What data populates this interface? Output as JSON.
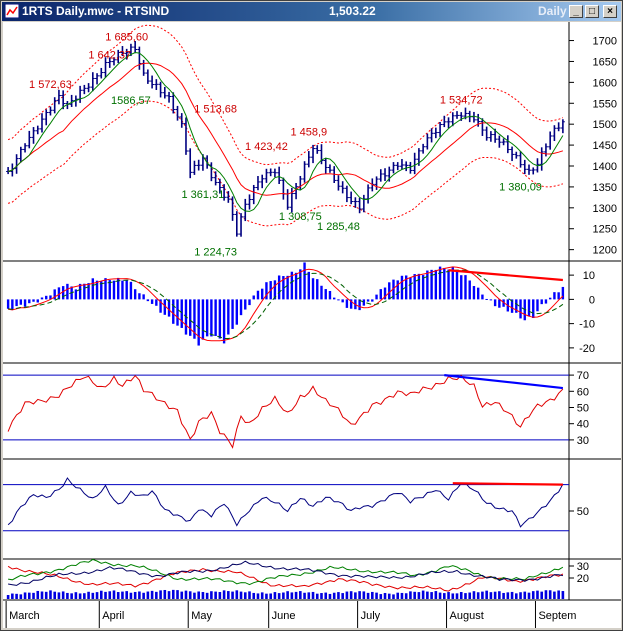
{
  "window": {
    "title": "1RTS Daily.mwc - RTSIND",
    "last_value": "1,503.22",
    "period": "Daily",
    "buttons": {
      "minimize": "_",
      "maximize": "□",
      "close": "×"
    }
  },
  "colors": {
    "price_bar": "#000080",
    "ma_red": "#ff0000",
    "ma_green": "#008000",
    "envelope": "#ff0000",
    "macd_hist": "#0000ff",
    "divergence_red": "#ff0000",
    "divergence_blue": "#0000ff",
    "grid_blue": "#0000c0"
  },
  "chart_data": [
    {
      "type": "bar",
      "panel": "price",
      "y_ticks": [
        "1700",
        "1650",
        "1600",
        "1550",
        "1500",
        "1450",
        "1400",
        "1350",
        "1300",
        "1250",
        "1200"
      ],
      "ylim": [
        1180,
        1730
      ],
      "x_labels": [
        "March",
        "April",
        "May",
        "June",
        "July",
        "August",
        "Septem"
      ],
      "x_label_days": [
        0,
        22,
        43,
        62,
        83,
        104,
        125
      ],
      "days": 132,
      "close_keypoints": [
        [
          0,
          1380
        ],
        [
          4,
          1460
        ],
        [
          8,
          1510
        ],
        [
          12,
          1560
        ],
        [
          14,
          1540
        ],
        [
          17,
          1580
        ],
        [
          21,
          1620
        ],
        [
          23,
          1642
        ],
        [
          26,
          1660
        ],
        [
          30,
          1680
        ],
        [
          32,
          1620
        ],
        [
          35,
          1595
        ],
        [
          38,
          1560
        ],
        [
          41,
          1490
        ],
        [
          43,
          1380
        ],
        [
          46,
          1420
        ],
        [
          49,
          1365
        ],
        [
          52,
          1320
        ],
        [
          54,
          1240
        ],
        [
          56,
          1300
        ],
        [
          58,
          1340
        ],
        [
          60,
          1375
        ],
        [
          63,
          1395
        ],
        [
          66,
          1310
        ],
        [
          69,
          1370
        ],
        [
          72,
          1440
        ],
        [
          75,
          1400
        ],
        [
          78,
          1360
        ],
        [
          81,
          1320
        ],
        [
          83,
          1300
        ],
        [
          86,
          1355
        ],
        [
          89,
          1380
        ],
        [
          92,
          1410
        ],
        [
          95,
          1400
        ],
        [
          98,
          1450
        ],
        [
          101,
          1480
        ],
        [
          104,
          1510
        ],
        [
          107,
          1530
        ],
        [
          110,
          1520
        ],
        [
          113,
          1470
        ],
        [
          116,
          1455
        ],
        [
          119,
          1430
        ],
        [
          121,
          1410
        ],
        [
          123,
          1390
        ],
        [
          125,
          1410
        ],
        [
          128,
          1470
        ],
        [
          131,
          1500
        ]
      ],
      "labels_red": [
        {
          "day": 10,
          "value": 1572.63,
          "text": "1 572,63"
        },
        {
          "day": 24,
          "value": 1642.37,
          "text": "1 642,37"
        },
        {
          "day": 28,
          "value": 1685.6,
          "text": "1 685,60"
        },
        {
          "day": 49,
          "value": 1513.68,
          "text": "1 513,68"
        },
        {
          "day": 61,
          "value": 1423.42,
          "text": "1 423,42"
        },
        {
          "day": 71,
          "value": 1458.9,
          "text": "1 458,9"
        },
        {
          "day": 107,
          "value": 1534.72,
          "text": "1 534,72"
        }
      ],
      "labels_green": [
        {
          "day": 29,
          "value": 1586.57,
          "text": "1586,57"
        },
        {
          "day": 46,
          "value": 1361.31,
          "text": "1 361,31"
        },
        {
          "day": 49,
          "value": 1224.73,
          "text": "1 224,73"
        },
        {
          "day": 69,
          "value": 1308.75,
          "text": "1 308,75"
        },
        {
          "day": 78,
          "value": 1285.48,
          "text": "1 285,48"
        },
        {
          "day": 121,
          "value": 1380.09,
          "text": "1 380,09"
        }
      ]
    },
    {
      "type": "bar",
      "panel": "macd",
      "y_ticks": [
        "10",
        "0",
        "-10",
        "-20"
      ],
      "ylim": [
        -25,
        15
      ],
      "hist_keypoints": [
        [
          0,
          -5
        ],
        [
          5,
          -2
        ],
        [
          9,
          2
        ],
        [
          13,
          6
        ],
        [
          16,
          4
        ],
        [
          20,
          8
        ],
        [
          24,
          9
        ],
        [
          28,
          8
        ],
        [
          31,
          2
        ],
        [
          34,
          -2
        ],
        [
          38,
          -7
        ],
        [
          41,
          -12
        ],
        [
          45,
          -19
        ],
        [
          48,
          -15
        ],
        [
          51,
          -17
        ],
        [
          54,
          -9
        ],
        [
          56,
          -4
        ],
        [
          59,
          3
        ],
        [
          62,
          7
        ],
        [
          65,
          10
        ],
        [
          68,
          12
        ],
        [
          70,
          15
        ],
        [
          72,
          9
        ],
        [
          76,
          2
        ],
        [
          79,
          -2
        ],
        [
          82,
          -4
        ],
        [
          84,
          -2
        ],
        [
          86,
          0
        ],
        [
          89,
          5
        ],
        [
          93,
          9
        ],
        [
          97,
          11
        ],
        [
          101,
          13
        ],
        [
          105,
          12
        ],
        [
          109,
          8
        ],
        [
          112,
          3
        ],
        [
          115,
          -2
        ],
        [
          119,
          -6
        ],
        [
          122,
          -9
        ],
        [
          124,
          -7
        ],
        [
          126,
          -2
        ],
        [
          129,
          3
        ],
        [
          131,
          5
        ]
      ],
      "divergence": {
        "day_start": 104,
        "value_start": 12,
        "day_end": 131,
        "value_end": 8
      }
    },
    {
      "type": "line",
      "panel": "rsi",
      "y_ticks": [
        "70",
        "60",
        "50",
        "40",
        "30"
      ],
      "ylim": [
        25,
        75
      ],
      "band_lines": [
        70,
        30
      ],
      "line_keypoints": [
        [
          0,
          37
        ],
        [
          4,
          51
        ],
        [
          8,
          54
        ],
        [
          12,
          59
        ],
        [
          14,
          63
        ],
        [
          18,
          68
        ],
        [
          22,
          61
        ],
        [
          25,
          69
        ],
        [
          27,
          65
        ],
        [
          30,
          70
        ],
        [
          32,
          60
        ],
        [
          36,
          53
        ],
        [
          40,
          49
        ],
        [
          43,
          31
        ],
        [
          45,
          41
        ],
        [
          48,
          45
        ],
        [
          50,
          34
        ],
        [
          53,
          27
        ],
        [
          55,
          46
        ],
        [
          57,
          41
        ],
        [
          60,
          49
        ],
        [
          63,
          54
        ],
        [
          66,
          45
        ],
        [
          69,
          57
        ],
        [
          72,
          63
        ],
        [
          75,
          54
        ],
        [
          78,
          47
        ],
        [
          81,
          38
        ],
        [
          83,
          44
        ],
        [
          86,
          53
        ],
        [
          89,
          55
        ],
        [
          92,
          58
        ],
        [
          95,
          57
        ],
        [
          98,
          62
        ],
        [
          101,
          65
        ],
        [
          104,
          68
        ],
        [
          107,
          67
        ],
        [
          110,
          62
        ],
        [
          112,
          51
        ],
        [
          115,
          55
        ],
        [
          118,
          48
        ],
        [
          121,
          37
        ],
        [
          123,
          44
        ],
        [
          125,
          50
        ],
        [
          128,
          55
        ],
        [
          131,
          62
        ]
      ],
      "divergence": {
        "day_start": 103,
        "value_start": 70,
        "day_end": 131,
        "value_end": 62
      }
    },
    {
      "type": "line",
      "panel": "oscillator",
      "y_ticks": [
        "50"
      ],
      "ylim": [
        0,
        100
      ],
      "band_lines": [
        90,
        20
      ],
      "line_keypoints": [
        [
          0,
          30
        ],
        [
          3,
          55
        ],
        [
          6,
          72
        ],
        [
          9,
          70
        ],
        [
          12,
          85
        ],
        [
          14,
          100
        ],
        [
          17,
          82
        ],
        [
          20,
          65
        ],
        [
          23,
          85
        ],
        [
          26,
          60
        ],
        [
          29,
          80
        ],
        [
          32,
          72
        ],
        [
          34,
          78
        ],
        [
          37,
          50
        ],
        [
          40,
          44
        ],
        [
          43,
          37
        ],
        [
          45,
          55
        ],
        [
          48,
          42
        ],
        [
          51,
          60
        ],
        [
          54,
          30
        ],
        [
          57,
          54
        ],
        [
          60,
          72
        ],
        [
          63,
          62
        ],
        [
          66,
          48
        ],
        [
          69,
          70
        ],
        [
          72,
          60
        ],
        [
          75,
          72
        ],
        [
          78,
          62
        ],
        [
          81,
          48
        ],
        [
          83,
          55
        ],
        [
          86,
          60
        ],
        [
          89,
          70
        ],
        [
          92,
          78
        ],
        [
          95,
          62
        ],
        [
          98,
          72
        ],
        [
          101,
          85
        ],
        [
          104,
          70
        ],
        [
          107,
          92
        ],
        [
          110,
          80
        ],
        [
          113,
          62
        ],
        [
          116,
          56
        ],
        [
          119,
          52
        ],
        [
          121,
          28
        ],
        [
          123,
          35
        ],
        [
          125,
          45
        ],
        [
          128,
          65
        ],
        [
          131,
          92
        ]
      ],
      "divergence": {
        "day_start": 105,
        "value_start": 92,
        "day_end": 131,
        "value_end": 90
      }
    },
    {
      "type": "line",
      "panel": "dmi",
      "y_ticks": [
        "30",
        "20"
      ],
      "ylim": [
        5,
        40
      ],
      "series_keypoints": {
        "red": [
          [
            0,
            30
          ],
          [
            10,
            22
          ],
          [
            20,
            15
          ],
          [
            30,
            14
          ],
          [
            38,
            22
          ],
          [
            46,
            28
          ],
          [
            54,
            24
          ],
          [
            62,
            15
          ],
          [
            70,
            12
          ],
          [
            78,
            20
          ],
          [
            86,
            14
          ],
          [
            96,
            12
          ],
          [
            104,
            10
          ],
          [
            112,
            20
          ],
          [
            120,
            18
          ],
          [
            131,
            22
          ]
        ],
        "green": [
          [
            0,
            18
          ],
          [
            10,
            26
          ],
          [
            20,
            34
          ],
          [
            30,
            30
          ],
          [
            40,
            20
          ],
          [
            50,
            18
          ],
          [
            58,
            16
          ],
          [
            66,
            22
          ],
          [
            76,
            28
          ],
          [
            86,
            26
          ],
          [
            96,
            22
          ],
          [
            104,
            30
          ],
          [
            112,
            22
          ],
          [
            122,
            18
          ],
          [
            131,
            30
          ]
        ],
        "black": [
          [
            0,
            14
          ],
          [
            12,
            22
          ],
          [
            24,
            28
          ],
          [
            36,
            22
          ],
          [
            46,
            26
          ],
          [
            56,
            32
          ],
          [
            66,
            28
          ],
          [
            76,
            24
          ],
          [
            86,
            20
          ],
          [
            96,
            22
          ],
          [
            106,
            26
          ],
          [
            116,
            18
          ],
          [
            126,
            20
          ],
          [
            131,
            22
          ]
        ]
      },
      "volume_keypoints": [
        [
          0,
          50
        ],
        [
          10,
          65
        ],
        [
          20,
          60
        ],
        [
          30,
          70
        ],
        [
          40,
          72
        ],
        [
          50,
          68
        ],
        [
          60,
          60
        ],
        [
          70,
          58
        ],
        [
          80,
          62
        ],
        [
          90,
          55
        ],
        [
          100,
          64
        ],
        [
          110,
          60
        ],
        [
          120,
          66
        ],
        [
          131,
          70
        ]
      ]
    }
  ]
}
